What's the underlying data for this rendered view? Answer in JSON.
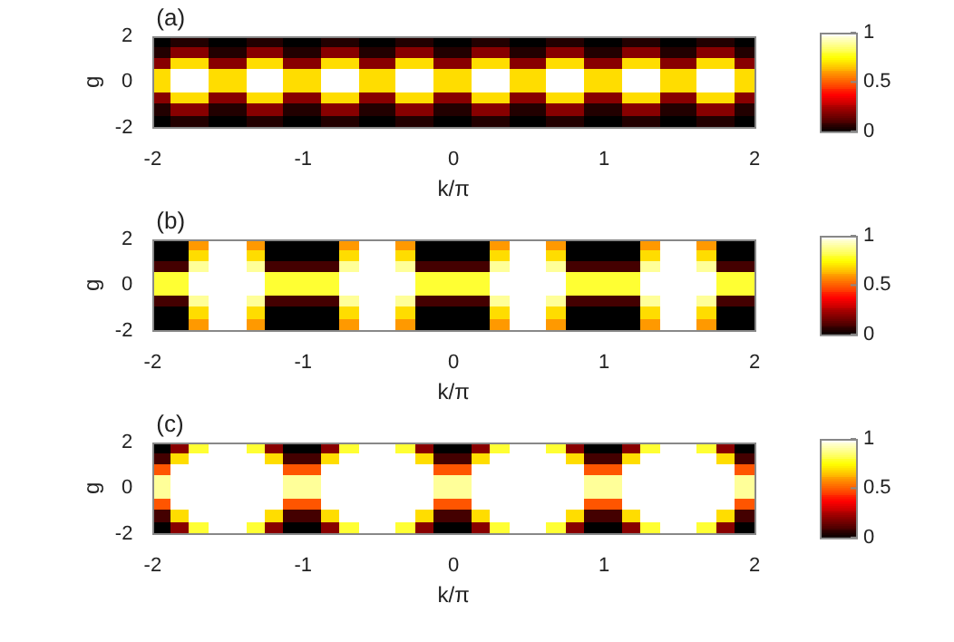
{
  "chart_data": [
    {
      "type": "heatmap",
      "title": "(a)",
      "xlabel": "k/π",
      "ylabel": "g",
      "xlim": [
        -2,
        2
      ],
      "ylim": [
        -2,
        2
      ],
      "xticks": [
        -2,
        -1,
        0,
        1,
        2
      ],
      "yticks": [
        -2,
        0,
        2
      ],
      "clim": [
        0,
        1
      ],
      "cticks": [
        0,
        0.5,
        1
      ],
      "x": [
        -1.9375,
        -1.8125,
        -1.6875,
        -1.5625,
        -1.4375,
        -1.3125,
        -1.1875,
        -1.0625,
        -0.9375,
        -0.8125,
        -0.6875,
        -0.5625,
        -0.4375,
        -0.3125,
        -0.1875,
        -0.0625,
        0.0625,
        0.1875,
        0.3125,
        0.4375,
        0.5625,
        0.6875,
        0.8125,
        0.9375,
        1.0625,
        1.1875,
        1.3125,
        1.4375,
        1.5625,
        1.6875,
        1.8125,
        1.9375
      ],
      "y": [
        1.75,
        1.25,
        0.75,
        0.25,
        -0.25,
        -0.75,
        -1.25,
        -1.75
      ],
      "cells": [
        [
          0,
          0.05,
          0.05,
          0,
          0,
          0.05,
          0.05,
          0,
          0,
          0.05,
          0.05,
          0,
          0,
          0.05,
          0.05,
          0,
          0,
          0.05,
          0.05,
          0,
          0,
          0.05,
          0.05,
          0,
          0,
          0.05,
          0.05,
          0,
          0,
          0.05,
          0.05,
          0
        ],
        [
          0.05,
          0.2,
          0.2,
          0.05,
          0.05,
          0.2,
          0.2,
          0.05,
          0.05,
          0.2,
          0.2,
          0.05,
          0.05,
          0.2,
          0.2,
          0.05,
          0.05,
          0.2,
          0.2,
          0.05,
          0.05,
          0.2,
          0.2,
          0.05,
          0.05,
          0.2,
          0.2,
          0.05,
          0.05,
          0.2,
          0.2,
          0.05
        ],
        [
          0.2,
          0.7,
          0.7,
          0.2,
          0.2,
          0.7,
          0.7,
          0.2,
          0.2,
          0.7,
          0.7,
          0.2,
          0.2,
          0.7,
          0.7,
          0.2,
          0.2,
          0.7,
          0.7,
          0.2,
          0.2,
          0.7,
          0.7,
          0.2,
          0.2,
          0.7,
          0.7,
          0.2,
          0.2,
          0.7,
          0.7,
          0.2
        ],
        [
          0.7,
          1,
          1,
          0.7,
          0.7,
          1,
          1,
          0.7,
          0.7,
          1,
          1,
          0.7,
          0.7,
          1,
          1,
          0.7,
          0.7,
          1,
          1,
          0.7,
          0.7,
          1,
          1,
          0.7,
          0.7,
          1,
          1,
          0.7,
          0.7,
          1,
          1,
          0.7
        ],
        [
          0.7,
          1,
          1,
          0.7,
          0.7,
          1,
          1,
          0.7,
          0.7,
          1,
          1,
          0.7,
          0.7,
          1,
          1,
          0.7,
          0.7,
          1,
          1,
          0.7,
          0.7,
          1,
          1,
          0.7,
          0.7,
          1,
          1,
          0.7,
          0.7,
          1,
          1,
          0.7
        ],
        [
          0.2,
          0.7,
          0.7,
          0.2,
          0.2,
          0.7,
          0.7,
          0.2,
          0.2,
          0.7,
          0.7,
          0.2,
          0.2,
          0.7,
          0.7,
          0.2,
          0.2,
          0.7,
          0.7,
          0.2,
          0.2,
          0.7,
          0.7,
          0.2,
          0.2,
          0.7,
          0.7,
          0.2,
          0.2,
          0.7,
          0.7,
          0.2
        ],
        [
          0.05,
          0.2,
          0.2,
          0.05,
          0.05,
          0.2,
          0.2,
          0.05,
          0.05,
          0.2,
          0.2,
          0.05,
          0.05,
          0.2,
          0.2,
          0.05,
          0.05,
          0.2,
          0.2,
          0.05,
          0.05,
          0.2,
          0.2,
          0.05,
          0.05,
          0.2,
          0.2,
          0.05,
          0.05,
          0.2,
          0.2,
          0.05
        ],
        [
          0,
          0.05,
          0.05,
          0,
          0,
          0.05,
          0.05,
          0,
          0,
          0.05,
          0.05,
          0,
          0,
          0.05,
          0.05,
          0,
          0,
          0.05,
          0.05,
          0,
          0,
          0.05,
          0.05,
          0,
          0,
          0.05,
          0.05,
          0,
          0,
          0.05,
          0.05,
          0
        ]
      ]
    },
    {
      "type": "heatmap",
      "title": "(b)",
      "xlabel": "k/π",
      "ylabel": "g",
      "xlim": [
        -2,
        2
      ],
      "ylim": [
        -2,
        2
      ],
      "xticks": [
        -2,
        -1,
        0,
        1,
        2
      ],
      "yticks": [
        -2,
        0,
        2
      ],
      "clim": [
        0,
        1
      ],
      "cticks": [
        0,
        0.5,
        1
      ],
      "x": [
        -1.9375,
        -1.8125,
        -1.6875,
        -1.5625,
        -1.4375,
        -1.3125,
        -1.1875,
        -1.0625,
        -0.9375,
        -0.8125,
        -0.6875,
        -0.5625,
        -0.4375,
        -0.3125,
        -0.1875,
        -0.0625,
        0.0625,
        0.1875,
        0.3125,
        0.4375,
        0.5625,
        0.6875,
        0.8125,
        0.9375,
        1.0625,
        1.1875,
        1.3125,
        1.4375,
        1.5625,
        1.6875,
        1.8125,
        1.9375
      ],
      "y": [
        1.75,
        1.25,
        0.75,
        0.25,
        -0.25,
        -0.75,
        -1.25,
        -1.75
      ],
      "cells": [
        [
          0,
          0,
          0.6,
          1,
          1,
          0.6,
          0,
          0,
          0,
          0,
          0.6,
          1,
          1,
          0.6,
          0,
          0,
          0,
          0,
          0.6,
          1,
          1,
          0.6,
          0,
          0,
          0,
          0,
          0.6,
          1,
          1,
          0.6,
          0,
          0
        ],
        [
          0,
          0,
          0.7,
          1,
          1,
          0.7,
          0,
          0,
          0,
          0,
          0.7,
          1,
          1,
          0.7,
          0,
          0,
          0,
          0,
          0.7,
          1,
          1,
          0.7,
          0,
          0,
          0,
          0,
          0.7,
          1,
          1,
          0.7,
          0,
          0
        ],
        [
          0.1,
          0.1,
          0.9,
          1,
          1,
          0.9,
          0.1,
          0.1,
          0.1,
          0.1,
          0.9,
          1,
          1,
          0.9,
          0.1,
          0.1,
          0.1,
          0.1,
          0.9,
          1,
          1,
          0.9,
          0.1,
          0.1,
          0.1,
          0.1,
          0.9,
          1,
          1,
          0.9,
          0.1,
          0.1
        ],
        [
          0.8,
          0.8,
          1,
          1,
          1,
          1,
          0.8,
          0.8,
          0.8,
          0.8,
          1,
          1,
          1,
          1,
          0.8,
          0.8,
          0.8,
          0.8,
          1,
          1,
          1,
          1,
          0.8,
          0.8,
          0.8,
          0.8,
          1,
          1,
          1,
          1,
          0.8,
          0.8
        ],
        [
          0.8,
          0.8,
          1,
          1,
          1,
          1,
          0.8,
          0.8,
          0.8,
          0.8,
          1,
          1,
          1,
          1,
          0.8,
          0.8,
          0.8,
          0.8,
          1,
          1,
          1,
          1,
          0.8,
          0.8,
          0.8,
          0.8,
          1,
          1,
          1,
          1,
          0.8,
          0.8
        ],
        [
          0.1,
          0.1,
          0.9,
          1,
          1,
          0.9,
          0.1,
          0.1,
          0.1,
          0.1,
          0.9,
          1,
          1,
          0.9,
          0.1,
          0.1,
          0.1,
          0.1,
          0.9,
          1,
          1,
          0.9,
          0.1,
          0.1,
          0.1,
          0.1,
          0.9,
          1,
          1,
          0.9,
          0.1,
          0.1
        ],
        [
          0,
          0,
          0.7,
          1,
          1,
          0.7,
          0,
          0,
          0,
          0,
          0.7,
          1,
          1,
          0.7,
          0,
          0,
          0,
          0,
          0.7,
          1,
          1,
          0.7,
          0,
          0,
          0,
          0,
          0.7,
          1,
          1,
          0.7,
          0,
          0
        ],
        [
          0,
          0,
          0.6,
          1,
          1,
          0.6,
          0,
          0,
          0,
          0,
          0.6,
          1,
          1,
          0.6,
          0,
          0,
          0,
          0,
          0.6,
          1,
          1,
          0.6,
          0,
          0,
          0,
          0,
          0.6,
          1,
          1,
          0.6,
          0,
          0
        ]
      ]
    },
    {
      "type": "heatmap",
      "title": "(c)",
      "xlabel": "k/π",
      "ylabel": "g",
      "xlim": [
        -2,
        2
      ],
      "ylim": [
        -2,
        2
      ],
      "xticks": [
        -2,
        -1,
        0,
        1,
        2
      ],
      "yticks": [
        -2,
        0,
        2
      ],
      "clim": [
        0,
        1
      ],
      "cticks": [
        0,
        0.5,
        1
      ],
      "x": [
        -1.9375,
        -1.8125,
        -1.6875,
        -1.5625,
        -1.4375,
        -1.3125,
        -1.1875,
        -1.0625,
        -0.9375,
        -0.8125,
        -0.6875,
        -0.5625,
        -0.4375,
        -0.3125,
        -0.1875,
        -0.0625,
        0.0625,
        0.1875,
        0.3125,
        0.4375,
        0.5625,
        0.6875,
        0.8125,
        0.9375,
        1.0625,
        1.1875,
        1.3125,
        1.4375,
        1.5625,
        1.6875,
        1.8125,
        1.9375
      ],
      "y": [
        1.75,
        1.25,
        0.75,
        0.25,
        -0.25,
        -0.75,
        -1.25,
        -1.75
      ],
      "cells": [
        [
          0,
          0.2,
          0.8,
          1,
          1,
          0.8,
          0.2,
          0,
          0,
          0.2,
          0.8,
          1,
          1,
          0.8,
          0.2,
          0,
          0,
          0.2,
          0.8,
          1,
          1,
          0.8,
          0.2,
          0,
          0,
          0.2,
          0.8,
          1,
          1,
          0.8,
          0.2,
          0
        ],
        [
          0.1,
          0.7,
          1,
          1,
          1,
          1,
          0.7,
          0.1,
          0.1,
          0.7,
          1,
          1,
          1,
          1,
          0.7,
          0.1,
          0.1,
          0.7,
          1,
          1,
          1,
          1,
          0.7,
          0.1,
          0.1,
          0.7,
          1,
          1,
          1,
          1,
          0.7,
          0.1
        ],
        [
          0.5,
          1,
          1,
          1,
          1,
          1,
          1,
          0.5,
          0.5,
          1,
          1,
          1,
          1,
          1,
          1,
          0.5,
          0.5,
          1,
          1,
          1,
          1,
          1,
          1,
          0.5,
          0.5,
          1,
          1,
          1,
          1,
          1,
          1,
          0.5
        ],
        [
          0.9,
          1,
          1,
          1,
          1,
          1,
          1,
          0.9,
          0.9,
          1,
          1,
          1,
          1,
          1,
          1,
          0.9,
          0.9,
          1,
          1,
          1,
          1,
          1,
          1,
          0.9,
          0.9,
          1,
          1,
          1,
          1,
          1,
          1,
          0.9
        ],
        [
          0.9,
          1,
          1,
          1,
          1,
          1,
          1,
          0.9,
          0.9,
          1,
          1,
          1,
          1,
          1,
          1,
          0.9,
          0.9,
          1,
          1,
          1,
          1,
          1,
          1,
          0.9,
          0.9,
          1,
          1,
          1,
          1,
          1,
          1,
          0.9
        ],
        [
          0.5,
          1,
          1,
          1,
          1,
          1,
          1,
          0.5,
          0.5,
          1,
          1,
          1,
          1,
          1,
          1,
          0.5,
          0.5,
          1,
          1,
          1,
          1,
          1,
          1,
          0.5,
          0.5,
          1,
          1,
          1,
          1,
          1,
          1,
          0.5
        ],
        [
          0.1,
          0.7,
          1,
          1,
          1,
          1,
          0.7,
          0.1,
          0.1,
          0.7,
          1,
          1,
          1,
          1,
          0.7,
          0.1,
          0.1,
          0.7,
          1,
          1,
          1,
          1,
          0.7,
          0.1,
          0.1,
          0.7,
          1,
          1,
          1,
          1,
          0.7,
          0.1
        ],
        [
          0,
          0.2,
          0.8,
          1,
          1,
          0.8,
          0.2,
          0,
          0,
          0.2,
          0.8,
          1,
          1,
          0.8,
          0.2,
          0,
          0,
          0.2,
          0.8,
          1,
          1,
          0.8,
          0.2,
          0,
          0,
          0.2,
          0.8,
          1,
          1,
          0.8,
          0.2,
          0
        ]
      ]
    }
  ]
}
